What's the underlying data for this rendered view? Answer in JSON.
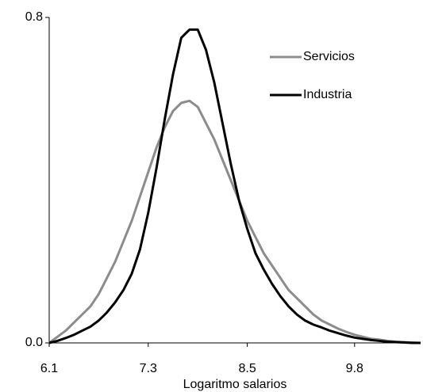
{
  "chart_data": {
    "type": "line",
    "x_label": "Logaritmo salarios",
    "x": [
      6.1,
      6.2,
      6.3,
      6.4,
      6.5,
      6.6,
      6.7,
      6.8,
      6.9,
      7.0,
      7.1,
      7.2,
      7.3,
      7.4,
      7.5,
      7.6,
      7.7,
      7.8,
      7.9,
      8.0,
      8.1,
      8.2,
      8.3,
      8.4,
      8.5,
      8.6,
      8.7,
      8.8,
      8.9,
      9.0,
      9.1,
      9.2,
      9.3,
      9.4,
      9.5,
      9.6,
      9.7,
      9.8,
      9.9,
      10.0,
      10.1,
      10.2,
      10.3,
      10.4,
      10.5,
      10.6
    ],
    "series": [
      {
        "name": "Servicios",
        "color": "#8c8c8c",
        "values": [
          0,
          0.015,
          0.03,
          0.05,
          0.07,
          0.09,
          0.12,
          0.16,
          0.2,
          0.25,
          0.3,
          0.36,
          0.42,
          0.48,
          0.53,
          0.57,
          0.59,
          0.595,
          0.58,
          0.54,
          0.5,
          0.45,
          0.4,
          0.35,
          0.3,
          0.26,
          0.22,
          0.19,
          0.16,
          0.13,
          0.11,
          0.09,
          0.07,
          0.055,
          0.045,
          0.035,
          0.027,
          0.02,
          0.015,
          0.01,
          0.008,
          0.005,
          0.003,
          0.002,
          0.001,
          0
        ]
      },
      {
        "name": "Industria",
        "color": "#000000",
        "values": [
          0,
          0.005,
          0.012,
          0.02,
          0.03,
          0.04,
          0.055,
          0.075,
          0.1,
          0.13,
          0.17,
          0.23,
          0.32,
          0.43,
          0.55,
          0.66,
          0.75,
          0.77,
          0.77,
          0.72,
          0.64,
          0.54,
          0.44,
          0.35,
          0.28,
          0.22,
          0.18,
          0.145,
          0.115,
          0.09,
          0.07,
          0.055,
          0.045,
          0.038,
          0.03,
          0.024,
          0.018,
          0.013,
          0.01,
          0.007,
          0.005,
          0.003,
          0.002,
          0.001,
          0,
          0
        ]
      }
    ],
    "xlim": [
      6.1,
      10.6
    ],
    "xticks": [
      6.1,
      7.3,
      8.5,
      9.8
    ],
    "ylim": [
      0,
      0.8
    ],
    "yticks": [
      {
        "value": 0,
        "label": "0.0"
      },
      0.8
    ],
    "legend": "top-right",
    "grid": false
  }
}
